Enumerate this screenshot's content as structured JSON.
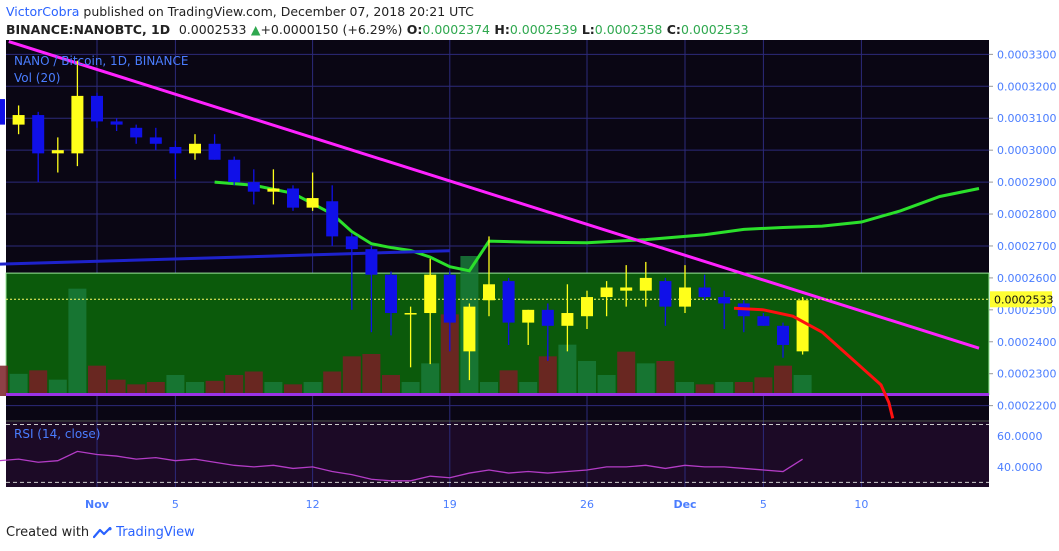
{
  "header": {
    "author": "VictorCobra",
    "published": " published on TradingView.com, December 07, 2018 20:21 UTC",
    "symbol": "BINANCE:NANOBTC, 1D",
    "last": "0.0002533",
    "change": "+0.0000150 (+6.29%)",
    "o_label": "O:",
    "o_value": "0.0002374",
    "h_label": "H:",
    "h_value": "0.0002539",
    "l_label": "L:",
    "l_value": "0.0002358",
    "c_label": "C:",
    "c_value": "0.0002533"
  },
  "legend": {
    "title": "NANO / Bitcoin, 1D, BINANCE",
    "vol": "Vol (20)",
    "rsi": "RSI (14, close)"
  },
  "footer": {
    "created_with": "Created with",
    "brand": "TradingView"
  },
  "colors": {
    "background": "#0a0614",
    "grid": "#2c2a7a",
    "candle_up": "#ffff1a",
    "candle_down": "#1010e8",
    "ma": "#2be02b",
    "trendline": "#ff22ff",
    "support": "#1e22cc",
    "zone": "#0b5a0b",
    "support_line": "#9c33e6",
    "projection": "#ff1010",
    "rsi": "#b33cc6",
    "axis_text": "#4a7dff"
  },
  "chart_data": {
    "type": "candlestick",
    "title": "NANO / Bitcoin, 1D, BINANCE",
    "interval": "1D",
    "y_axis": {
      "range": [
        0.0002155,
        0.0003345
      ],
      "ticks": [
        "0.0003300",
        "0.0003200",
        "0.0003100",
        "0.0003000",
        "0.0002900",
        "0.0002800",
        "0.0002700",
        "0.0002600",
        "0.0002500",
        "0.0002400",
        "0.0002300",
        "0.0002200"
      ],
      "last_price_label": "0.0002533"
    },
    "x_axis": {
      "ticks": [
        {
          "label": "Nov",
          "day": 0,
          "bold": true
        },
        {
          "label": "5",
          "day": 4,
          "bold": false
        },
        {
          "label": "12",
          "day": 11,
          "bold": false
        },
        {
          "label": "19",
          "day": 18,
          "bold": false
        },
        {
          "label": "26",
          "day": 25,
          "bold": false
        },
        {
          "label": "Dec",
          "day": 30,
          "bold": true
        },
        {
          "label": "5",
          "day": 34,
          "bold": false
        },
        {
          "label": "10",
          "day": 39,
          "bold": false
        }
      ]
    },
    "candles": [
      {
        "day": -5,
        "o": 0.000316,
        "h": 0.000317,
        "l": 0.000308,
        "c": 0.000308
      },
      {
        "day": -4,
        "o": 0.000308,
        "h": 0.000314,
        "l": 0.000305,
        "c": 0.000311
      },
      {
        "day": -3,
        "o": 0.000311,
        "h": 0.000312,
        "l": 0.00029,
        "c": 0.000299
      },
      {
        "day": -2,
        "o": 0.000299,
        "h": 0.000304,
        "l": 0.000293,
        "c": 0.0003
      },
      {
        "day": -1,
        "o": 0.000299,
        "h": 0.000328,
        "l": 0.000295,
        "c": 0.000317
      },
      {
        "day": 0,
        "o": 0.000317,
        "h": 0.000318,
        "l": 0.000307,
        "c": 0.000309
      },
      {
        "day": 1,
        "o": 0.000309,
        "h": 0.00031,
        "l": 0.000306,
        "c": 0.000308
      },
      {
        "day": 2,
        "o": 0.000307,
        "h": 0.000308,
        "l": 0.000302,
        "c": 0.000304
      },
      {
        "day": 3,
        "o": 0.000304,
        "h": 0.000307,
        "l": 0.0003,
        "c": 0.000302
      },
      {
        "day": 4,
        "o": 0.000301,
        "h": 0.000303,
        "l": 0.000291,
        "c": 0.000299
      },
      {
        "day": 5,
        "o": 0.000299,
        "h": 0.000305,
        "l": 0.000297,
        "c": 0.000302
      },
      {
        "day": 6,
        "o": 0.000302,
        "h": 0.000305,
        "l": 0.000297,
        "c": 0.000297
      },
      {
        "day": 7,
        "o": 0.000297,
        "h": 0.000298,
        "l": 0.000289,
        "c": 0.00029
      },
      {
        "day": 8,
        "o": 0.00029,
        "h": 0.000294,
        "l": 0.000283,
        "c": 0.000287
      },
      {
        "day": 9,
        "o": 0.000287,
        "h": 0.000294,
        "l": 0.000283,
        "c": 0.000288
      },
      {
        "day": 10,
        "o": 0.000288,
        "h": 0.000289,
        "l": 0.000281,
        "c": 0.000282
      },
      {
        "day": 11,
        "o": 0.000282,
        "h": 0.000293,
        "l": 0.000281,
        "c": 0.000285
      },
      {
        "day": 12,
        "o": 0.000284,
        "h": 0.000289,
        "l": 0.00027,
        "c": 0.000273
      },
      {
        "day": 13,
        "o": 0.000273,
        "h": 0.000274,
        "l": 0.00025,
        "c": 0.000269
      },
      {
        "day": 14,
        "o": 0.000269,
        "h": 0.00027,
        "l": 0.000243,
        "c": 0.000261
      },
      {
        "day": 15,
        "o": 0.000261,
        "h": 0.000262,
        "l": 0.000242,
        "c": 0.000249
      },
      {
        "day": 16,
        "o": 0.000249,
        "h": 0.000251,
        "l": 0.000232,
        "c": 0.000249
      },
      {
        "day": 17,
        "o": 0.000249,
        "h": 0.000266,
        "l": 0.000233,
        "c": 0.000261
      },
      {
        "day": 18,
        "o": 0.000261,
        "h": 0.000262,
        "l": 0.000237,
        "c": 0.000246
      },
      {
        "day": 19,
        "o": 0.000237,
        "h": 0.000252,
        "l": 0.000228,
        "c": 0.000251
      },
      {
        "day": 20,
        "o": 0.000253,
        "h": 0.000273,
        "l": 0.000248,
        "c": 0.000258
      },
      {
        "day": 21,
        "o": 0.000259,
        "h": 0.00026,
        "l": 0.000239,
        "c": 0.000246
      },
      {
        "day": 22,
        "o": 0.000246,
        "h": 0.00025,
        "l": 0.000239,
        "c": 0.00025
      },
      {
        "day": 23,
        "o": 0.00025,
        "h": 0.000252,
        "l": 0.000234,
        "c": 0.000245
      },
      {
        "day": 24,
        "o": 0.000245,
        "h": 0.000258,
        "l": 0.000237,
        "c": 0.000249
      },
      {
        "day": 25,
        "o": 0.000248,
        "h": 0.000256,
        "l": 0.000244,
        "c": 0.000254
      },
      {
        "day": 26,
        "o": 0.000254,
        "h": 0.000259,
        "l": 0.000248,
        "c": 0.000257
      },
      {
        "day": 27,
        "o": 0.000256,
        "h": 0.000264,
        "l": 0.000251,
        "c": 0.000257
      },
      {
        "day": 28,
        "o": 0.000256,
        "h": 0.000265,
        "l": 0.000251,
        "c": 0.00026
      },
      {
        "day": 29,
        "o": 0.000259,
        "h": 0.00026,
        "l": 0.000245,
        "c": 0.000251
      },
      {
        "day": 30,
        "o": 0.000251,
        "h": 0.000264,
        "l": 0.000249,
        "c": 0.000257
      },
      {
        "day": 31,
        "o": 0.000257,
        "h": 0.000261,
        "l": 0.000253,
        "c": 0.000254
      },
      {
        "day": 32,
        "o": 0.000254,
        "h": 0.000256,
        "l": 0.000244,
        "c": 0.000252
      },
      {
        "day": 33,
        "o": 0.000252,
        "h": 0.000253,
        "l": 0.000243,
        "c": 0.000248
      },
      {
        "day": 34,
        "o": 0.000248,
        "h": 0.000249,
        "l": 0.000245,
        "c": 0.000245
      },
      {
        "day": 35,
        "o": 0.000245,
        "h": 0.000246,
        "l": 0.000235,
        "c": 0.000239
      },
      {
        "day": 36,
        "o": 0.000237,
        "h": 0.000254,
        "l": 0.000236,
        "c": 0.000253
      }
    ],
    "volume": [
      {
        "day": -5,
        "v": 26,
        "up": false
      },
      {
        "day": -4,
        "v": 19,
        "up": true
      },
      {
        "day": -3,
        "v": 22,
        "up": false
      },
      {
        "day": -2,
        "v": 14,
        "up": true
      },
      {
        "day": -1,
        "v": 92,
        "up": true
      },
      {
        "day": 0,
        "v": 26,
        "up": false
      },
      {
        "day": 1,
        "v": 14,
        "up": false
      },
      {
        "day": 2,
        "v": 10,
        "up": false
      },
      {
        "day": 3,
        "v": 12,
        "up": false
      },
      {
        "day": 4,
        "v": 18,
        "up": true
      },
      {
        "day": 5,
        "v": 12,
        "up": true
      },
      {
        "day": 6,
        "v": 13,
        "up": false
      },
      {
        "day": 7,
        "v": 18,
        "up": false
      },
      {
        "day": 8,
        "v": 21,
        "up": false
      },
      {
        "day": 9,
        "v": 12,
        "up": true
      },
      {
        "day": 10,
        "v": 10,
        "up": false
      },
      {
        "day": 11,
        "v": 12,
        "up": true
      },
      {
        "day": 12,
        "v": 21,
        "up": false
      },
      {
        "day": 13,
        "v": 34,
        "up": false
      },
      {
        "day": 14,
        "v": 36,
        "up": false
      },
      {
        "day": 15,
        "v": 18,
        "up": false
      },
      {
        "day": 16,
        "v": 12,
        "up": true
      },
      {
        "day": 17,
        "v": 28,
        "up": true
      },
      {
        "day": 18,
        "v": 70,
        "up": false
      },
      {
        "day": 19,
        "v": 120,
        "up": true
      },
      {
        "day": 20,
        "v": 12,
        "up": true
      },
      {
        "day": 21,
        "v": 22,
        "up": false
      },
      {
        "day": 22,
        "v": 12,
        "up": true
      },
      {
        "day": 23,
        "v": 34,
        "up": false
      },
      {
        "day": 24,
        "v": 44,
        "up": true
      },
      {
        "day": 25,
        "v": 30,
        "up": true
      },
      {
        "day": 26,
        "v": 18,
        "up": true
      },
      {
        "day": 27,
        "v": 38,
        "up": false
      },
      {
        "day": 28,
        "v": 28,
        "up": true
      },
      {
        "day": 29,
        "v": 30,
        "up": false
      },
      {
        "day": 30,
        "v": 12,
        "up": true
      },
      {
        "day": 31,
        "v": 10,
        "up": false
      },
      {
        "day": 32,
        "v": 12,
        "up": true
      },
      {
        "day": 33,
        "v": 12,
        "up": false
      },
      {
        "day": 34,
        "v": 16,
        "up": false
      },
      {
        "day": 35,
        "v": 26,
        "up": false
      },
      {
        "day": 36,
        "v": 18,
        "up": true
      }
    ],
    "ma_series": [
      {
        "day": 6,
        "value": 0.00029
      },
      {
        "day": 8,
        "value": 0.000289
      },
      {
        "day": 10,
        "value": 0.0002865
      },
      {
        "day": 12,
        "value": 0.00028
      },
      {
        "day": 13,
        "value": 0.0002745
      },
      {
        "day": 14,
        "value": 0.0002707
      },
      {
        "day": 15,
        "value": 0.0002695
      },
      {
        "day": 16,
        "value": 0.0002686
      },
      {
        "day": 17,
        "value": 0.0002665
      },
      {
        "day": 18,
        "value": 0.0002635
      },
      {
        "day": 19,
        "value": 0.0002622
      },
      {
        "day": 20,
        "value": 0.0002715
      },
      {
        "day": 22,
        "value": 0.0002712
      },
      {
        "day": 25,
        "value": 0.000271
      },
      {
        "day": 28,
        "value": 0.000272
      },
      {
        "day": 31,
        "value": 0.0002735
      },
      {
        "day": 33,
        "value": 0.0002752
      },
      {
        "day": 35,
        "value": 0.0002758
      },
      {
        "day": 37,
        "value": 0.0002762
      },
      {
        "day": 39,
        "value": 0.0002775
      },
      {
        "day": 41,
        "value": 0.000281
      },
      {
        "day": 43,
        "value": 0.0002855
      },
      {
        "day": 45,
        "value": 0.000288
      }
    ],
    "trendline_points": [
      {
        "day": -4.5,
        "value": 0.000334
      },
      {
        "day": 45,
        "value": 0.000238
      }
    ],
    "support_line_points": [
      {
        "day": -5.5,
        "value": 0.0002642
      },
      {
        "day": 18,
        "value": 0.0002685
      }
    ],
    "zone": {
      "from": 0.0002235,
      "to": 0.0002615
    },
    "support_level": 0.0002235,
    "projection_points": [
      {
        "day": 32.5,
        "value": 0.0002505
      },
      {
        "day": 34,
        "value": 0.00025
      },
      {
        "day": 35.5,
        "value": 0.000248
      },
      {
        "day": 37,
        "value": 0.000243
      },
      {
        "day": 38,
        "value": 0.0002375
      },
      {
        "day": 39,
        "value": 0.000232
      },
      {
        "day": 40,
        "value": 0.0002265
      },
      {
        "day": 40.4,
        "value": 0.000221
      },
      {
        "day": 40.6,
        "value": 0.000216
      }
    ],
    "rsi": {
      "title": "RSI (14, close)",
      "range": [
        27,
        69
      ],
      "ticks": [
        "60.0000",
        "40.0000"
      ],
      "bands": [
        70,
        30
      ],
      "series": [
        {
          "day": -5,
          "value": 44
        },
        {
          "day": -4,
          "value": 45
        },
        {
          "day": -3,
          "value": 43
        },
        {
          "day": -2,
          "value": 44
        },
        {
          "day": -1,
          "value": 50
        },
        {
          "day": 0,
          "value": 48
        },
        {
          "day": 1,
          "value": 47
        },
        {
          "day": 2,
          "value": 45
        },
        {
          "day": 3,
          "value": 46
        },
        {
          "day": 4,
          "value": 44
        },
        {
          "day": 5,
          "value": 45
        },
        {
          "day": 6,
          "value": 43
        },
        {
          "day": 7,
          "value": 41
        },
        {
          "day": 8,
          "value": 40
        },
        {
          "day": 9,
          "value": 41
        },
        {
          "day": 10,
          "value": 39
        },
        {
          "day": 11,
          "value": 40
        },
        {
          "day": 12,
          "value": 37
        },
        {
          "day": 13,
          "value": 35
        },
        {
          "day": 14,
          "value": 32
        },
        {
          "day": 15,
          "value": 31
        },
        {
          "day": 16,
          "value": 31
        },
        {
          "day": 17,
          "value": 34
        },
        {
          "day": 18,
          "value": 33
        },
        {
          "day": 19,
          "value": 36
        },
        {
          "day": 20,
          "value": 38
        },
        {
          "day": 21,
          "value": 36
        },
        {
          "day": 22,
          "value": 37
        },
        {
          "day": 23,
          "value": 36
        },
        {
          "day": 24,
          "value": 37
        },
        {
          "day": 25,
          "value": 38
        },
        {
          "day": 26,
          "value": 40
        },
        {
          "day": 27,
          "value": 40
        },
        {
          "day": 28,
          "value": 41
        },
        {
          "day": 29,
          "value": 39
        },
        {
          "day": 30,
          "value": 41
        },
        {
          "day": 31,
          "value": 40
        },
        {
          "day": 32,
          "value": 40
        },
        {
          "day": 33,
          "value": 39
        },
        {
          "day": 34,
          "value": 38
        },
        {
          "day": 35,
          "value": 37
        },
        {
          "day": 36,
          "value": 45
        }
      ]
    }
  }
}
